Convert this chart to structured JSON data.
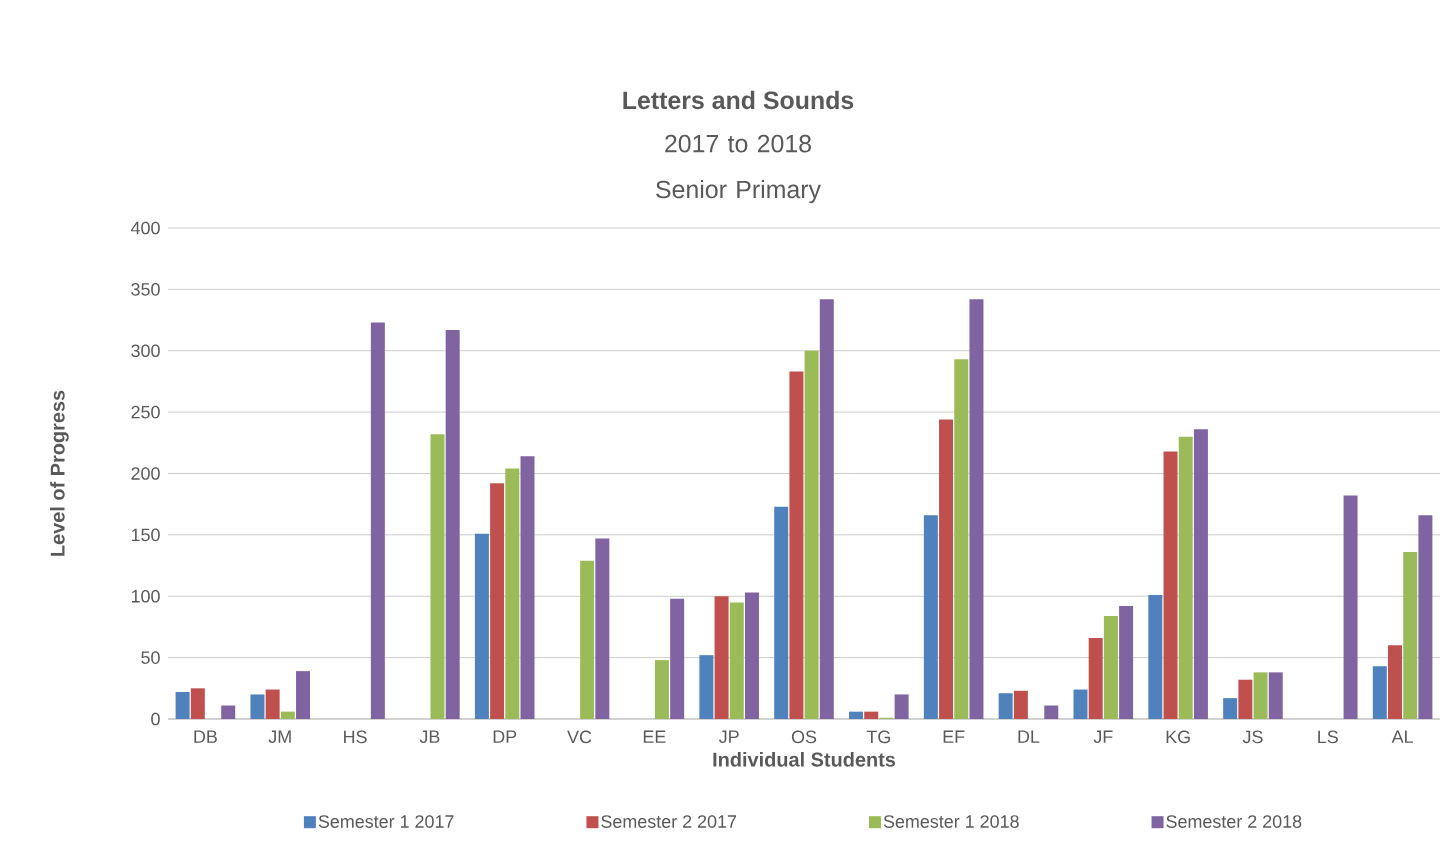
{
  "chart_data": {
    "type": "bar",
    "title": "Letters and Sounds",
    "subtitle": "2017 to 2018 Senior Primary",
    "xlabel": "Individual Students",
    "ylabel": "Level of Progress",
    "categories": [
      "DB",
      "JM",
      "HS",
      "JB",
      "DP",
      "VC",
      "EE",
      "JP",
      "OS",
      "TG",
      "EF",
      "DL",
      "JF",
      "KG",
      "JS",
      "LS",
      "AL"
    ],
    "series": [
      {
        "name": "Semester 1 2017",
        "color": "#4f81bd",
        "values": [
          22,
          20,
          0,
          0,
          151,
          0,
          0,
          52,
          173,
          6,
          166,
          21,
          24,
          101,
          17,
          0,
          43
        ]
      },
      {
        "name": "Semester 2 2017",
        "color": "#c0504d",
        "values": [
          25,
          24,
          0,
          0,
          192,
          0,
          0,
          100,
          283,
          6,
          244,
          23,
          66,
          218,
          32,
          0,
          60
        ]
      },
      {
        "name": "Semester 1 2018",
        "color": "#9bbb59",
        "values": [
          0,
          6,
          0,
          232,
          204,
          129,
          48,
          95,
          300,
          1,
          293,
          0,
          84,
          230,
          38,
          0,
          136
        ]
      },
      {
        "name": "Semester 2 2018",
        "color": "#8064a2",
        "values": [
          11,
          39,
          323,
          317,
          214,
          147,
          98,
          103,
          342,
          20,
          342,
          11,
          92,
          236,
          38,
          182,
          166
        ]
      }
    ],
    "ylim": [
      0,
      400
    ],
    "yticks": [
      0,
      50,
      100,
      150,
      200,
      250,
      300,
      350,
      400
    ],
    "grid": "y",
    "legend": "bottom"
  }
}
